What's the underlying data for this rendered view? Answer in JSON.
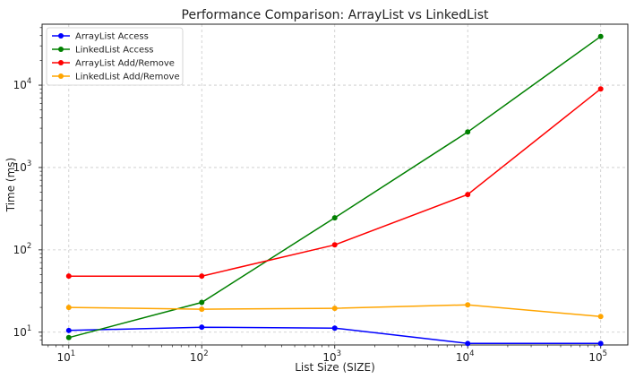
{
  "chart_data": {
    "type": "line",
    "title": "Performance Comparison: ArrayList vs LinkedList",
    "xlabel": "List Size (SIZE)",
    "ylabel": "Time (ms)",
    "xscale": "log",
    "yscale": "log",
    "xlim": [
      6.3,
      160000
    ],
    "ylim": [
      7.0,
      55000
    ],
    "grid": true,
    "legend_position": "top-left",
    "x_ticks": [
      {
        "base": "10",
        "exp": "1",
        "value": 10
      },
      {
        "base": "10",
        "exp": "2",
        "value": 100
      },
      {
        "base": "10",
        "exp": "3",
        "value": 1000
      },
      {
        "base": "10",
        "exp": "4",
        "value": 10000
      },
      {
        "base": "10",
        "exp": "5",
        "value": 100000
      }
    ],
    "y_ticks": [
      {
        "base": "10",
        "exp": "1",
        "value": 10
      },
      {
        "base": "10",
        "exp": "2",
        "value": 100
      },
      {
        "base": "10",
        "exp": "3",
        "value": 1000
      },
      {
        "base": "10",
        "exp": "4",
        "value": 10000
      }
    ],
    "x": [
      10,
      100,
      1000,
      10000,
      100000
    ],
    "series": [
      {
        "name": "ArrayList Access",
        "color": "#0000ff",
        "values": [
          10.5,
          11.5,
          11.2,
          7.3,
          7.3
        ]
      },
      {
        "name": "LinkedList Access",
        "color": "#008000",
        "values": [
          8.6,
          23,
          245,
          2700,
          39000
        ]
      },
      {
        "name": "ArrayList Add/Remove",
        "color": "#ff0000",
        "values": [
          48,
          48,
          115,
          470,
          9000
        ]
      },
      {
        "name": "LinkedList Add/Remove",
        "color": "#ffa500",
        "values": [
          20,
          19,
          19.5,
          21.5,
          15.5
        ]
      }
    ]
  }
}
